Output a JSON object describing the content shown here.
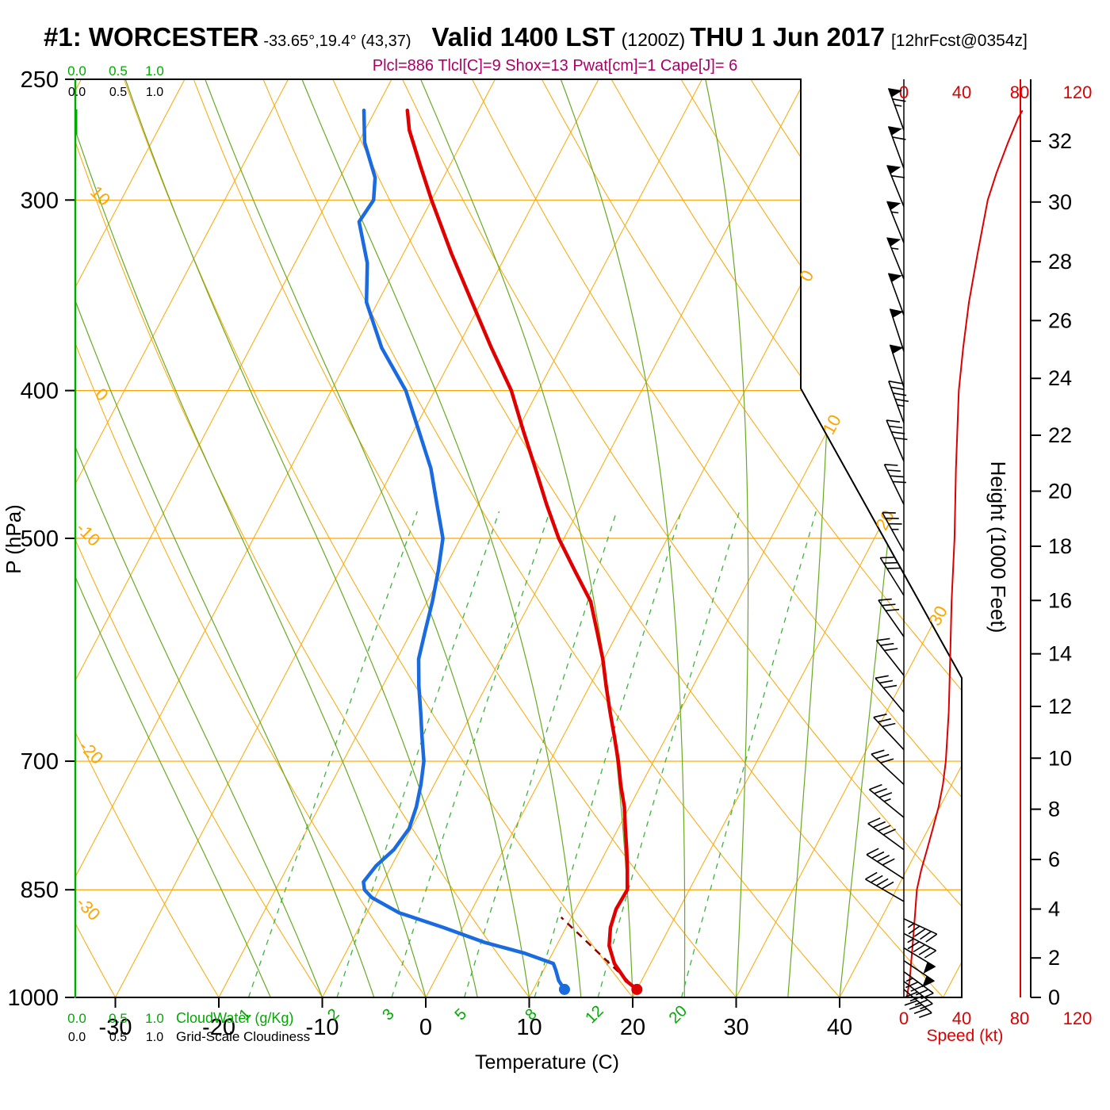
{
  "header": {
    "station": "#1: WORCESTER",
    "coords": "-33.65°,19.4° (43,37)",
    "valid_main": "Valid 1400 LST",
    "valid_z": "(1200Z)",
    "valid_date": "THU 1 Jun 2017",
    "forecast": "[12hrFcst@0354z]",
    "stats": "Plcl=886 Tlcl[C]=9 Shox=13 Pwat[cm]=1 Cape[J]= 6"
  },
  "axes": {
    "pressure_label": "P (hPa)",
    "pressure_ticks": [
      250,
      300,
      400,
      500,
      700,
      850,
      1000
    ],
    "temperature_label": "Temperature (C)",
    "temperature_ticks": [
      -30,
      -20,
      -10,
      0,
      10,
      20,
      30,
      40
    ],
    "height_label": "Height (1000 Feet)",
    "height_ticks": [
      0,
      2,
      4,
      6,
      8,
      10,
      12,
      14,
      16,
      18,
      20,
      22,
      24,
      26,
      28,
      30,
      32
    ],
    "speed_label": "Speed (kt)",
    "speed_ticks": [
      0,
      40,
      80,
      120
    ],
    "cloudwater_scale": [
      "0.0",
      "0.5",
      "1.0"
    ],
    "cloudwater_label": "CloudWater (g/Kg)",
    "cloudiness_scale": [
      "0.0",
      "0.5",
      "1.0"
    ],
    "cloudiness_label": "Grid-Scale Cloudiness",
    "dry_adiabat_labels": [
      10,
      0,
      -10,
      -20,
      -30
    ],
    "isotherm_labels": [
      0,
      10,
      20,
      30
    ],
    "mixing_ratio_labels": [
      1,
      2,
      3,
      5,
      8,
      12,
      20
    ]
  },
  "chart_data": {
    "type": "skewt-logp",
    "pressure_range_hpa": [
      250,
      1000
    ],
    "isobar_lines_hpa": [
      300,
      400,
      500,
      700,
      850
    ],
    "isotherm_step_c": 10,
    "dry_adiabat_step_c": 10,
    "moist_adiabats_c": [
      -15,
      -10,
      -5,
      0,
      5,
      10,
      15,
      20,
      25,
      30,
      35,
      40
    ],
    "mixing_ratio_lines_gkg": [
      1,
      2,
      3,
      5,
      8,
      12,
      20
    ],
    "lcl_hpa": 886,
    "surface_temp_c": 20,
    "surface_dewpoint_c": 13,
    "temperature_profile_p_t": [
      [
        988,
        20
      ],
      [
        975,
        18.5
      ],
      [
        950,
        16.5
      ],
      [
        925,
        15.1
      ],
      [
        900,
        14.3
      ],
      [
        875,
        13.9
      ],
      [
        850,
        14
      ],
      [
        825,
        13
      ],
      [
        800,
        11.9
      ],
      [
        775,
        10.7
      ],
      [
        750,
        9.5
      ],
      [
        725,
        8
      ],
      [
        700,
        6.6
      ],
      [
        675,
        5
      ],
      [
        650,
        3.3
      ],
      [
        625,
        1.6
      ],
      [
        600,
        -0.1
      ],
      [
        575,
        -2.1
      ],
      [
        550,
        -4.2
      ],
      [
        525,
        -7.3
      ],
      [
        500,
        -10.5
      ],
      [
        475,
        -13.4
      ],
      [
        450,
        -16.3
      ],
      [
        425,
        -19.4
      ],
      [
        400,
        -22.6
      ],
      [
        375,
        -26.7
      ],
      [
        350,
        -30.9
      ],
      [
        325,
        -35.4
      ],
      [
        300,
        -40
      ],
      [
        285,
        -42.8
      ],
      [
        270,
        -45.7
      ],
      [
        262,
        -46.9
      ]
    ],
    "dewpoint_profile_p_t": [
      [
        988,
        13
      ],
      [
        975,
        12
      ],
      [
        960,
        11.2
      ],
      [
        950,
        10.6
      ],
      [
        935,
        7.2
      ],
      [
        920,
        2.8
      ],
      [
        900,
        -1.8
      ],
      [
        880,
        -6.9
      ],
      [
        860,
        -10.3
      ],
      [
        850,
        -11.4
      ],
      [
        840,
        -11.9
      ],
      [
        820,
        -11.5
      ],
      [
        800,
        -10.6
      ],
      [
        775,
        -10.2
      ],
      [
        750,
        -10.6
      ],
      [
        725,
        -11.3
      ],
      [
        700,
        -12.2
      ],
      [
        675,
        -13.6
      ],
      [
        650,
        -15
      ],
      [
        625,
        -16.5
      ],
      [
        600,
        -17.9
      ],
      [
        575,
        -18.7
      ],
      [
        550,
        -19.5
      ],
      [
        525,
        -20.5
      ],
      [
        500,
        -21.7
      ],
      [
        475,
        -24
      ],
      [
        450,
        -26.4
      ],
      [
        425,
        -29.5
      ],
      [
        400,
        -32.8
      ],
      [
        375,
        -37.3
      ],
      [
        350,
        -41.1
      ],
      [
        330,
        -43
      ],
      [
        310,
        -45.9
      ],
      [
        300,
        -45.6
      ],
      [
        290,
        -46.6
      ],
      [
        275,
        -49.4
      ],
      [
        262,
        -51.1
      ]
    ],
    "parcel_trace_p_t": [
      [
        988,
        20
      ],
      [
        886,
        9
      ]
    ],
    "wind_barbs_p_kt_dir": [
      [
        270,
        65,
        340
      ],
      [
        286,
        60,
        340
      ],
      [
        303,
        60,
        338
      ],
      [
        320,
        55,
        338
      ],
      [
        338,
        55,
        338
      ],
      [
        357,
        50,
        340
      ],
      [
        377,
        50,
        342
      ],
      [
        398,
        50,
        342
      ],
      [
        420,
        45,
        340
      ],
      [
        445,
        40,
        337
      ],
      [
        475,
        38,
        334
      ],
      [
        510,
        35,
        331
      ],
      [
        545,
        30,
        328
      ],
      [
        580,
        30,
        325
      ],
      [
        615,
        30,
        322
      ],
      [
        650,
        30,
        320
      ],
      [
        688,
        30,
        317
      ],
      [
        725,
        32,
        313
      ],
      [
        762,
        35,
        309
      ],
      [
        800,
        38,
        306
      ],
      [
        836,
        40,
        303
      ],
      [
        865,
        42,
        300
      ],
      [
        888,
        45,
        115
      ],
      [
        908,
        45,
        118
      ],
      [
        928,
        48,
        121
      ],
      [
        946,
        50,
        124
      ],
      [
        962,
        46,
        126
      ],
      [
        976,
        42,
        128
      ],
      [
        988,
        38,
        130
      ]
    ],
    "wind_speed_profile_p_kt": [
      [
        1000,
        2
      ],
      [
        975,
        4
      ],
      [
        950,
        5
      ],
      [
        925,
        6
      ],
      [
        900,
        7
      ],
      [
        875,
        8
      ],
      [
        850,
        9
      ],
      [
        825,
        12
      ],
      [
        800,
        16
      ],
      [
        775,
        20
      ],
      [
        750,
        24
      ],
      [
        725,
        27
      ],
      [
        700,
        29
      ],
      [
        650,
        31
      ],
      [
        600,
        32
      ],
      [
        550,
        33
      ],
      [
        500,
        35
      ],
      [
        450,
        36
      ],
      [
        400,
        38
      ],
      [
        375,
        41
      ],
      [
        350,
        45
      ],
      [
        325,
        51
      ],
      [
        300,
        58
      ],
      [
        288,
        64
      ],
      [
        275,
        72
      ],
      [
        265,
        79
      ],
      [
        262,
        82
      ]
    ]
  },
  "colors": {
    "grid_orange": "#ffa500",
    "moist_green": "#66aa22",
    "mixing_green": "#3bb53b",
    "axis_green": "#00aa00",
    "label_green": "#00aa00",
    "profile_red": "#e00000",
    "profile_blue": "#1a6ae0",
    "parcel_maroon": "#8b0000",
    "speed_red": "#dd0000",
    "stats_magenta": "#aa0066"
  }
}
